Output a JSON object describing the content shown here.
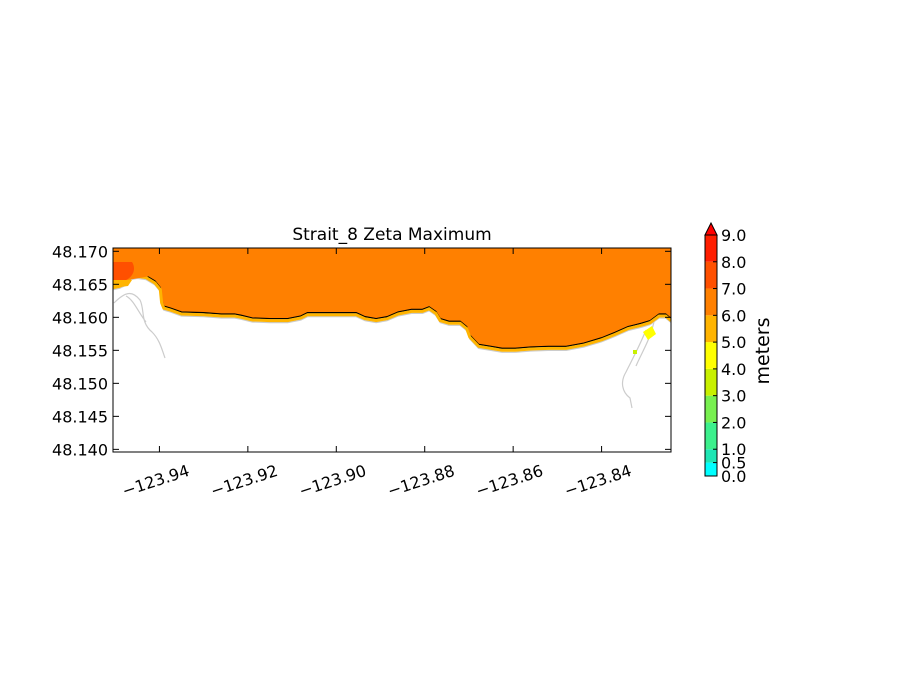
{
  "chart_data": {
    "type": "heatmap",
    "title": "Strait_8 Zeta Maximum",
    "xlabel": "",
    "ylabel": "",
    "xlim": [
      -123.9505,
      -123.8243
    ],
    "ylim": [
      48.1396,
      48.1705
    ],
    "grid": false,
    "x_ticks": [
      {
        "value": -123.94,
        "label": "−123.94"
      },
      {
        "value": -123.92,
        "label": "−123.92"
      },
      {
        "value": -123.9,
        "label": "−123.90"
      },
      {
        "value": -123.88,
        "label": "−123.88"
      },
      {
        "value": -123.86,
        "label": "−123.86"
      },
      {
        "value": -123.84,
        "label": "−123.84"
      }
    ],
    "y_ticks": [
      {
        "value": 48.14,
        "label": "48.140"
      },
      {
        "value": 48.145,
        "label": "48.145"
      },
      {
        "value": 48.15,
        "label": "48.150"
      },
      {
        "value": 48.155,
        "label": "48.155"
      },
      {
        "value": 48.16,
        "label": "48.160"
      },
      {
        "value": 48.165,
        "label": "48.165"
      },
      {
        "value": 48.17,
        "label": "48.170"
      }
    ],
    "dominant_level": 6.0,
    "shoreline": [
      [
        -123.9505,
        48.1648
      ],
      [
        -123.949,
        48.165
      ],
      [
        -123.9475,
        48.1655
      ],
      [
        -123.9465,
        48.1663
      ],
      [
        -123.945,
        48.1665
      ],
      [
        -123.943,
        48.1663
      ],
      [
        -123.941,
        48.1655
      ],
      [
        -123.9398,
        48.1645
      ],
      [
        -123.9395,
        48.1625
      ],
      [
        -123.939,
        48.1617
      ],
      [
        -123.9375,
        48.1614
      ],
      [
        -123.935,
        48.1608
      ],
      [
        -123.93,
        48.1607
      ],
      [
        -123.926,
        48.1605
      ],
      [
        -123.923,
        48.1605
      ],
      [
        -123.9215,
        48.1603
      ],
      [
        -123.919,
        48.1599
      ],
      [
        -123.915,
        48.1598
      ],
      [
        -123.911,
        48.1598
      ],
      [
        -123.908,
        48.1602
      ],
      [
        -123.9065,
        48.1607
      ],
      [
        -123.904,
        48.1607
      ],
      [
        -123.899,
        48.1607
      ],
      [
        -123.8955,
        48.1607
      ],
      [
        -123.8935,
        48.1601
      ],
      [
        -123.891,
        48.1598
      ],
      [
        -123.8885,
        48.1601
      ],
      [
        -123.886,
        48.1608
      ],
      [
        -123.883,
        48.1612
      ],
      [
        -123.8805,
        48.1612
      ],
      [
        -123.879,
        48.1616
      ],
      [
        -123.8775,
        48.1609
      ],
      [
        -123.8765,
        48.1598
      ],
      [
        -123.8745,
        48.1594
      ],
      [
        -123.872,
        48.1594
      ],
      [
        -123.8705,
        48.1586
      ],
      [
        -123.8698,
        48.1573
      ],
      [
        -123.8678,
        48.1559
      ],
      [
        -123.865,
        48.1556
      ],
      [
        -123.8625,
        48.1553
      ],
      [
        -123.8595,
        48.1553
      ],
      [
        -123.856,
        48.1555
      ],
      [
        -123.852,
        48.1556
      ],
      [
        -123.848,
        48.1556
      ],
      [
        -123.844,
        48.1561
      ],
      [
        -123.84,
        48.1569
      ],
      [
        -123.837,
        48.1577
      ],
      [
        -123.834,
        48.1586
      ],
      [
        -123.831,
        48.1591
      ],
      [
        -123.829,
        48.1595
      ],
      [
        -123.827,
        48.1605
      ],
      [
        -123.8255,
        48.1605
      ],
      [
        -123.8243,
        48.1598
      ]
    ],
    "colorbar": {
      "label": "meters",
      "levels": [
        {
          "value": 0.0,
          "label": "0.0"
        },
        {
          "value": 0.5,
          "label": "0.5"
        },
        {
          "value": 1.0,
          "label": "1.0"
        },
        {
          "value": 2.0,
          "label": "2.0"
        },
        {
          "value": 3.0,
          "label": "3.0"
        },
        {
          "value": 4.0,
          "label": "4.0"
        },
        {
          "value": 5.0,
          "label": "5.0"
        },
        {
          "value": 6.0,
          "label": "6.0"
        },
        {
          "value": 7.0,
          "label": "7.0"
        },
        {
          "value": 8.0,
          "label": "8.0"
        },
        {
          "value": 9.0,
          "label": "9.0"
        }
      ],
      "colors": [
        "#00ffff",
        "#1ee6b4",
        "#3cf08c",
        "#78f050",
        "#c8f000",
        "#ffff00",
        "#ffb400",
        "#ff8000",
        "#ff5000",
        "#ff1e00"
      ],
      "extend_color": "#ff0000"
    }
  }
}
